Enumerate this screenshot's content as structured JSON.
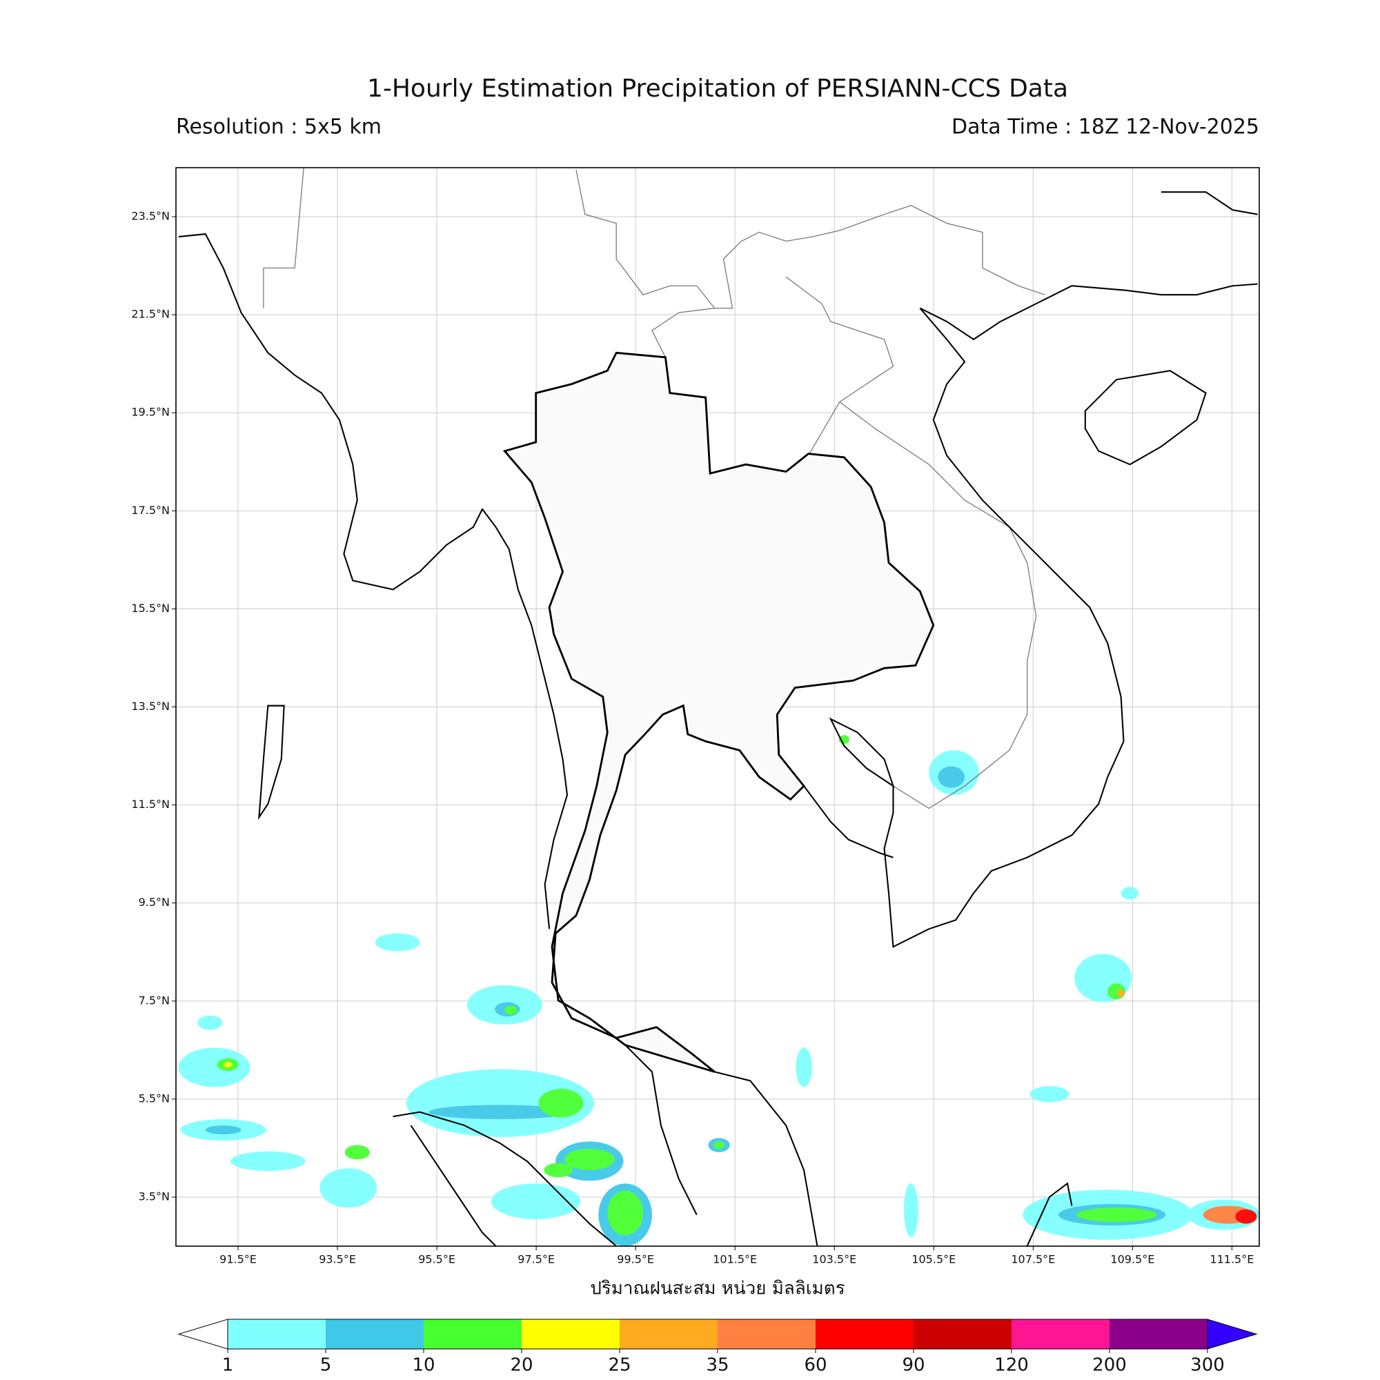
{
  "title": "1-Hourly Estimation Precipitation of PERSIANN-CCS Data",
  "subtitle_left": "Resolution : 5x5 km",
  "subtitle_right": "Data Time : 18Z 12-Nov-2025",
  "map": {
    "xlim": [
      90.25,
      112.05
    ],
    "ylim": [
      2.5,
      24.5
    ],
    "grid": true,
    "xticks": [
      {
        "value": 91.5,
        "label": "91.5°E"
      },
      {
        "value": 93.5,
        "label": "93.5°E"
      },
      {
        "value": 95.5,
        "label": "95.5°E"
      },
      {
        "value": 97.5,
        "label": "97.5°E"
      },
      {
        "value": 99.5,
        "label": "99.5°E"
      },
      {
        "value": 101.5,
        "label": "101.5°E"
      },
      {
        "value": 103.5,
        "label": "103.5°E"
      },
      {
        "value": 105.5,
        "label": "105.5°E"
      },
      {
        "value": 107.5,
        "label": "107.5°E"
      },
      {
        "value": 109.5,
        "label": "109.5°E"
      },
      {
        "value": 111.5,
        "label": "111.5°E"
      }
    ],
    "yticks": [
      {
        "value": 3.5,
        "label": "3.5°N"
      },
      {
        "value": 5.5,
        "label": "5.5°N"
      },
      {
        "value": 7.5,
        "label": "7.5°N"
      },
      {
        "value": 9.5,
        "label": "9.5°N"
      },
      {
        "value": 11.5,
        "label": "11.5°N"
      },
      {
        "value": 13.5,
        "label": "13.5°N"
      },
      {
        "value": 15.5,
        "label": "15.5°N"
      },
      {
        "value": 17.5,
        "label": "17.5°N"
      },
      {
        "value": 19.5,
        "label": "19.5°N"
      },
      {
        "value": 21.5,
        "label": "21.5°N"
      },
      {
        "value": 23.5,
        "label": "23.5°N"
      }
    ],
    "xlabel": "ปริมาณฝนสะสม หน่วย มิลลิเมตร"
  },
  "colorbar": {
    "levels": [
      1,
      5,
      10,
      20,
      25,
      35,
      60,
      90,
      120,
      200,
      300
    ],
    "colors": [
      "#80ffff",
      "#40c8e8",
      "#48ff30",
      "#ffff00",
      "#ffaa20",
      "#ff8040",
      "#ff0000",
      "#cc0000",
      "#ff1493",
      "#8b008b"
    ],
    "under_color": "#ffffff",
    "over_color": "#3300ff"
  }
}
